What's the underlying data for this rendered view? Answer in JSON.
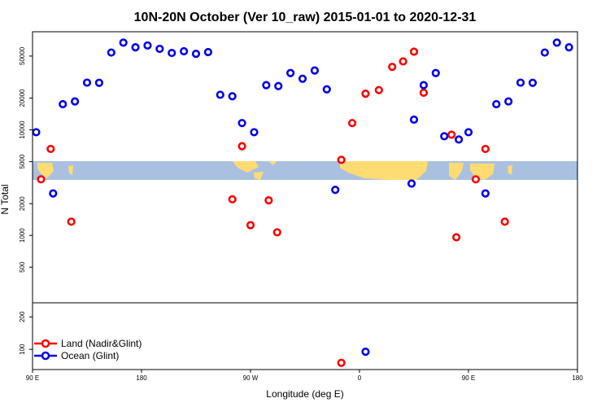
{
  "chart_data": {
    "type": "scatter",
    "title": "10N-20N October (Ver 10_raw)   2015-01-01 to 2020-12-31",
    "xlabel": "Longitude (deg E)",
    "ylabel": "N Total",
    "x_ticks": [
      {
        "value": 90,
        "label": "90 E"
      },
      {
        "value": 180,
        "label": "180"
      },
      {
        "value": 270,
        "label": "90 W"
      },
      {
        "value": 360,
        "label": "0"
      },
      {
        "value": 450,
        "label": "90 E"
      },
      {
        "value": 540,
        "label": "180"
      }
    ],
    "xlim": [
      90,
      540
    ],
    "y_scale": "log",
    "upper_panel": {
      "ylim": [
        230,
        85000
      ],
      "y_ticks": [
        {
          "value": 500,
          "label": "500"
        },
        {
          "value": 1000,
          "label": "1000"
        },
        {
          "value": 2000,
          "label": "2000"
        },
        {
          "value": 5000,
          "label": "5000"
        },
        {
          "value": 10000,
          "label": "10000"
        },
        {
          "value": 20000,
          "label": "20000"
        },
        {
          "value": 50000,
          "label": "50000"
        }
      ]
    },
    "lower_panel": {
      "ylim": [
        65,
        270
      ],
      "y_ticks": [
        {
          "value": 100,
          "label": "100"
        },
        {
          "value": 200,
          "label": "200"
        }
      ]
    },
    "legend": {
      "position": "bottom-left"
    },
    "colors": {
      "land": "#ff0000",
      "ocean": "#0000ee",
      "band": "#a9c0e0",
      "landmass": "#ffdc73"
    },
    "series": [
      {
        "name": "Land (Nadir&Glint)",
        "color": "#ff0000",
        "points": [
          {
            "x": 97,
            "y": 3400
          },
          {
            "x": 105,
            "y": 6600
          },
          {
            "x": 122,
            "y": 1350
          },
          {
            "x": 255,
            "y": 2200
          },
          {
            "x": 263,
            "y": 7000
          },
          {
            "x": 270,
            "y": 1250
          },
          {
            "x": 285,
            "y": 2150
          },
          {
            "x": 292,
            "y": 1070
          },
          {
            "x": 345,
            "y": 5200
          },
          {
            "x": 354,
            "y": 11600
          },
          {
            "x": 365,
            "y": 22000
          },
          {
            "x": 376,
            "y": 23800
          },
          {
            "x": 387,
            "y": 39500
          },
          {
            "x": 396,
            "y": 44500
          },
          {
            "x": 405,
            "y": 55000
          },
          {
            "x": 413,
            "y": 22500
          },
          {
            "x": 436,
            "y": 9000
          },
          {
            "x": 440,
            "y": 960
          },
          {
            "x": 456,
            "y": 3400
          },
          {
            "x": 464,
            "y": 6600
          },
          {
            "x": 480,
            "y": 1350
          },
          {
            "x": 345,
            "y": 75
          }
        ]
      },
      {
        "name": "Ocean (Glint)",
        "color": "#0000ee",
        "points": [
          {
            "x": 93,
            "y": 9500
          },
          {
            "x": 107,
            "y": 2500
          },
          {
            "x": 115,
            "y": 17500
          },
          {
            "x": 125,
            "y": 18600
          },
          {
            "x": 135,
            "y": 28000
          },
          {
            "x": 145,
            "y": 27900
          },
          {
            "x": 155,
            "y": 54000
          },
          {
            "x": 165,
            "y": 67000
          },
          {
            "x": 175,
            "y": 60500
          },
          {
            "x": 185,
            "y": 63000
          },
          {
            "x": 195,
            "y": 58500
          },
          {
            "x": 205,
            "y": 53500
          },
          {
            "x": 215,
            "y": 55500
          },
          {
            "x": 225,
            "y": 52500
          },
          {
            "x": 235,
            "y": 54500
          },
          {
            "x": 245,
            "y": 21500
          },
          {
            "x": 255,
            "y": 20800
          },
          {
            "x": 263,
            "y": 11600
          },
          {
            "x": 273,
            "y": 9500
          },
          {
            "x": 283,
            "y": 26500
          },
          {
            "x": 293,
            "y": 26000
          },
          {
            "x": 303,
            "y": 34500
          },
          {
            "x": 313,
            "y": 30500
          },
          {
            "x": 323,
            "y": 36500
          },
          {
            "x": 333,
            "y": 24200
          },
          {
            "x": 340,
            "y": 2700
          },
          {
            "x": 403,
            "y": 3100
          },
          {
            "x": 405,
            "y": 12500
          },
          {
            "x": 413,
            "y": 26500
          },
          {
            "x": 423,
            "y": 34500
          },
          {
            "x": 430,
            "y": 8700
          },
          {
            "x": 442,
            "y": 8100
          },
          {
            "x": 450,
            "y": 9500
          },
          {
            "x": 464,
            "y": 2500
          },
          {
            "x": 473,
            "y": 17500
          },
          {
            "x": 483,
            "y": 18600
          },
          {
            "x": 493,
            "y": 28000
          },
          {
            "x": 503,
            "y": 27900
          },
          {
            "x": 513,
            "y": 54000
          },
          {
            "x": 523,
            "y": 67000
          },
          {
            "x": 533,
            "y": 60500
          },
          {
            "x": 365,
            "y": 95
          }
        ]
      }
    ]
  }
}
